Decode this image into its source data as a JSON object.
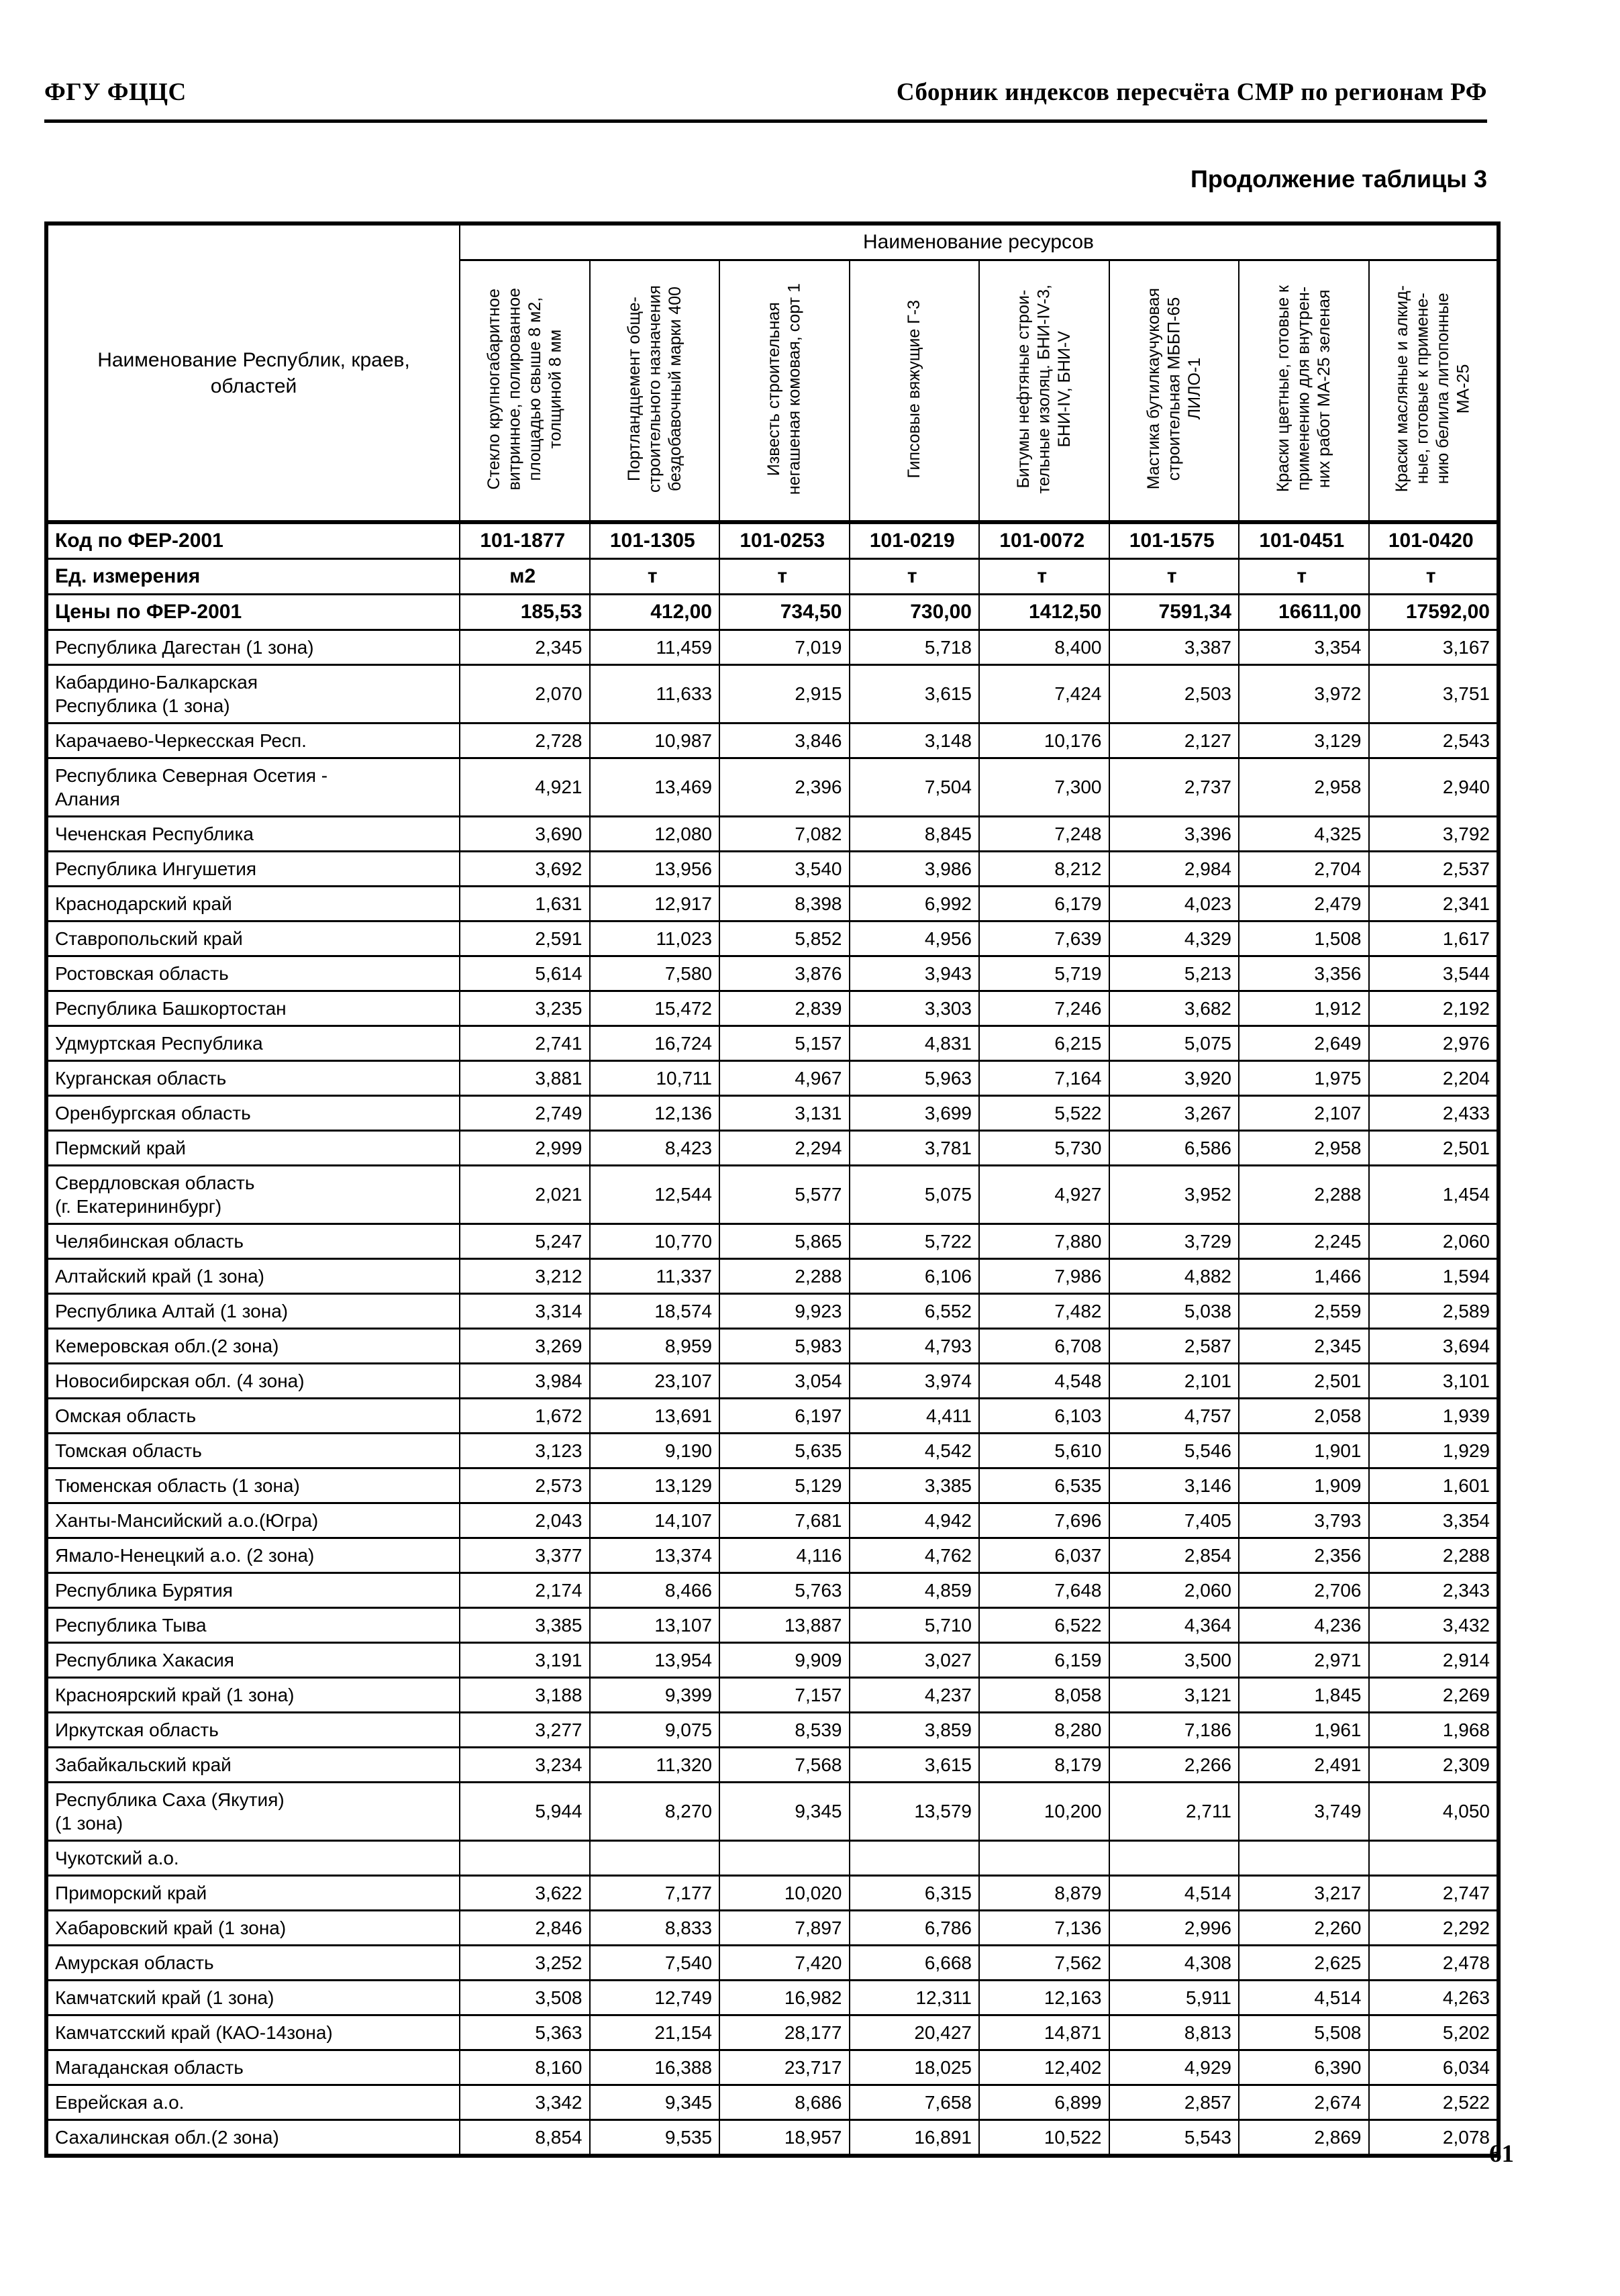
{
  "page": {
    "header_left": "ФГУ ФЦЦС",
    "header_right": "Сборник индексов пересчёта СМР  по регионам РФ",
    "table_caption": "Продолжение таблицы 3",
    "page_number": "61"
  },
  "table": {
    "region_column_header": "Наименование Республик, краев,\nобластей",
    "resources_header": "Наименование ресурсов",
    "resource_columns": [
      "Стекло крупногабаритное\nвитринное, полированное\nплощадью свыше 8 м2,\nтолщиной 8 мм",
      "Портландцемент обще-\nстроительного назначения\nбездобавочный марки 400",
      "Известь строительная\nнегашеная комовая, сорт 1",
      "Гипсовые вяжущие Г-3",
      "Битумы нефтяные строи-\nтельные изоляц. БНИ-IV-3,\nБНИ-IV, БНИ-V",
      "Мастика бутилкаучуковая\nстроительная МББП-65\nЛИЛО-1",
      "Краски цветные, готовые к\nприменению для внутрен-\nних работ МА-25  зеленая",
      "Краски масляные и алкид-\nные, готовые к примене-\nнию белила литопонные\nМА-25"
    ],
    "meta_rows": [
      {
        "label": "Код по ФЕР-2001",
        "values": [
          "101-1877",
          "101-1305",
          "101-0253",
          "101-0219",
          "101-0072",
          "101-1575",
          "101-0451",
          "101-0420"
        ]
      },
      {
        "label": "Ед. измерения",
        "values": [
          "м2",
          "т",
          "т",
          "т",
          "т",
          "т",
          "т",
          "т"
        ]
      },
      {
        "label": "Цены по ФЕР-2001",
        "values": [
          "185,53",
          "412,00",
          "734,50",
          "730,00",
          "1412,50",
          "7591,34",
          "16611,00",
          "17592,00"
        ]
      }
    ],
    "rows": [
      {
        "region": "Республика Дагестан (1 зона)",
        "values": [
          "2,345",
          "11,459",
          "7,019",
          "5,718",
          "8,400",
          "3,387",
          "3,354",
          "3,167"
        ]
      },
      {
        "region": "Кабардино-Балкарская\nРеспублика (1 зона)",
        "values": [
          "2,070",
          "11,633",
          "2,915",
          "3,615",
          "7,424",
          "2,503",
          "3,972",
          "3,751"
        ]
      },
      {
        "region": "Карачаево-Черкесская Респ.",
        "values": [
          "2,728",
          "10,987",
          "3,846",
          "3,148",
          "10,176",
          "2,127",
          "3,129",
          "2,543"
        ]
      },
      {
        "region": "Республика Северная Осетия -\nАлания",
        "values": [
          "4,921",
          "13,469",
          "2,396",
          "7,504",
          "7,300",
          "2,737",
          "2,958",
          "2,940"
        ]
      },
      {
        "region": "Чеченская Республика",
        "values": [
          "3,690",
          "12,080",
          "7,082",
          "8,845",
          "7,248",
          "3,396",
          "4,325",
          "3,792"
        ]
      },
      {
        "region": "Республика Ингушетия",
        "values": [
          "3,692",
          "13,956",
          "3,540",
          "3,986",
          "8,212",
          "2,984",
          "2,704",
          "2,537"
        ]
      },
      {
        "region": "Краснодарский край",
        "values": [
          "1,631",
          "12,917",
          "8,398",
          "6,992",
          "6,179",
          "4,023",
          "2,479",
          "2,341"
        ]
      },
      {
        "region": "Ставропольский край",
        "values": [
          "2,591",
          "11,023",
          "5,852",
          "4,956",
          "7,639",
          "4,329",
          "1,508",
          "1,617"
        ]
      },
      {
        "region": "Ростовская область",
        "values": [
          "5,614",
          "7,580",
          "3,876",
          "3,943",
          "5,719",
          "5,213",
          "3,356",
          "3,544"
        ]
      },
      {
        "region": "Республика Башкортостан",
        "values": [
          "3,235",
          "15,472",
          "2,839",
          "3,303",
          "7,246",
          "3,682",
          "1,912",
          "2,192"
        ]
      },
      {
        "region": "Удмуртская Республика",
        "values": [
          "2,741",
          "16,724",
          "5,157",
          "4,831",
          "6,215",
          "5,075",
          "2,649",
          "2,976"
        ]
      },
      {
        "region": "Курганская область",
        "values": [
          "3,881",
          "10,711",
          "4,967",
          "5,963",
          "7,164",
          "3,920",
          "1,975",
          "2,204"
        ]
      },
      {
        "region": "Оренбургская область",
        "values": [
          "2,749",
          "12,136",
          "3,131",
          "3,699",
          "5,522",
          "3,267",
          "2,107",
          "2,433"
        ]
      },
      {
        "region": "Пермский край",
        "values": [
          "2,999",
          "8,423",
          "2,294",
          "3,781",
          "5,730",
          "6,586",
          "2,958",
          "2,501"
        ]
      },
      {
        "region": "Свердловская область\n(г. Екатерининбург)",
        "values": [
          "2,021",
          "12,544",
          "5,577",
          "5,075",
          "4,927",
          "3,952",
          "2,288",
          "1,454"
        ]
      },
      {
        "region": "Челябинская область",
        "values": [
          "5,247",
          "10,770",
          "5,865",
          "5,722",
          "7,880",
          "3,729",
          "2,245",
          "2,060"
        ]
      },
      {
        "region": "Алтайский край (1 зона)",
        "values": [
          "3,212",
          "11,337",
          "2,288",
          "6,106",
          "7,986",
          "4,882",
          "1,466",
          "1,594"
        ]
      },
      {
        "region": "Республика Алтай (1 зона)",
        "values": [
          "3,314",
          "18,574",
          "9,923",
          "6,552",
          "7,482",
          "5,038",
          "2,559",
          "2,589"
        ]
      },
      {
        "region": "Кемеровская обл.(2 зона)",
        "values": [
          "3,269",
          "8,959",
          "5,983",
          "4,793",
          "6,708",
          "2,587",
          "2,345",
          "3,694"
        ]
      },
      {
        "region": "Новосибирская обл. (4 зона)",
        "values": [
          "3,984",
          "23,107",
          "3,054",
          "3,974",
          "4,548",
          "2,101",
          "2,501",
          "3,101"
        ]
      },
      {
        "region": "Омская область",
        "values": [
          "1,672",
          "13,691",
          "6,197",
          "4,411",
          "6,103",
          "4,757",
          "2,058",
          "1,939"
        ]
      },
      {
        "region": "Томская область",
        "values": [
          "3,123",
          "9,190",
          "5,635",
          "4,542",
          "5,610",
          "5,546",
          "1,901",
          "1,929"
        ]
      },
      {
        "region": "Тюменская область (1 зона)",
        "values": [
          "2,573",
          "13,129",
          "5,129",
          "3,385",
          "6,535",
          "3,146",
          "1,909",
          "1,601"
        ]
      },
      {
        "region": "Ханты-Мансийский а.о.(Югра)",
        "values": [
          "2,043",
          "14,107",
          "7,681",
          "4,942",
          "7,696",
          "7,405",
          "3,793",
          "3,354"
        ]
      },
      {
        "region": "Ямало-Ненецкий а.о. (2 зона)",
        "values": [
          "3,377",
          "13,374",
          "4,116",
          "4,762",
          "6,037",
          "2,854",
          "2,356",
          "2,288"
        ]
      },
      {
        "region": "Республика Бурятия",
        "values": [
          "2,174",
          "8,466",
          "5,763",
          "4,859",
          "7,648",
          "2,060",
          "2,706",
          "2,343"
        ]
      },
      {
        "region": "Республика Тыва",
        "values": [
          "3,385",
          "13,107",
          "13,887",
          "5,710",
          "6,522",
          "4,364",
          "4,236",
          "3,432"
        ]
      },
      {
        "region": "Республика Хакасия",
        "values": [
          "3,191",
          "13,954",
          "9,909",
          "3,027",
          "6,159",
          "3,500",
          "2,971",
          "2,914"
        ]
      },
      {
        "region": "Красноярский край (1 зона)",
        "values": [
          "3,188",
          "9,399",
          "7,157",
          "4,237",
          "8,058",
          "3,121",
          "1,845",
          "2,269"
        ]
      },
      {
        "region": "Иркутская область",
        "values": [
          "3,277",
          "9,075",
          "8,539",
          "3,859",
          "8,280",
          "7,186",
          "1,961",
          "1,968"
        ]
      },
      {
        "region": "Забайкальский край",
        "values": [
          "3,234",
          "11,320",
          "7,568",
          "3,615",
          "8,179",
          "2,266",
          "2,491",
          "2,309"
        ]
      },
      {
        "region": "Республика Саха (Якутия)\n(1 зона)",
        "values": [
          "5,944",
          "8,270",
          "9,345",
          "13,579",
          "10,200",
          "2,711",
          "3,749",
          "4,050"
        ]
      },
      {
        "region": "Чукотский а.о.",
        "values": [
          "",
          "",
          "",
          "",
          "",
          "",
          "",
          ""
        ]
      },
      {
        "region": "Приморский край",
        "values": [
          "3,622",
          "7,177",
          "10,020",
          "6,315",
          "8,879",
          "4,514",
          "3,217",
          "2,747"
        ]
      },
      {
        "region": "Хабаровский край (1 зона)",
        "values": [
          "2,846",
          "8,833",
          "7,897",
          "6,786",
          "7,136",
          "2,996",
          "2,260",
          "2,292"
        ]
      },
      {
        "region": "Амурская область",
        "values": [
          "3,252",
          "7,540",
          "7,420",
          "6,668",
          "7,562",
          "4,308",
          "2,625",
          "2,478"
        ]
      },
      {
        "region": "Камчатский край (1 зона)",
        "values": [
          "3,508",
          "12,749",
          "16,982",
          "12,311",
          "12,163",
          "5,911",
          "4,514",
          "4,263"
        ]
      },
      {
        "region": "Камчатсский край (КАО-14зона)",
        "values": [
          "5,363",
          "21,154",
          "28,177",
          "20,427",
          "14,871",
          "8,813",
          "5,508",
          "5,202"
        ]
      },
      {
        "region": "Магаданская область",
        "values": [
          "8,160",
          "16,388",
          "23,717",
          "18,025",
          "12,402",
          "4,929",
          "6,390",
          "6,034"
        ]
      },
      {
        "region": "Еврейская а.о.",
        "values": [
          "3,342",
          "9,345",
          "8,686",
          "7,658",
          "6,899",
          "2,857",
          "2,674",
          "2,522"
        ]
      },
      {
        "region": "Сахалинская обл.(2 зона)",
        "values": [
          "8,854",
          "9,535",
          "18,957",
          "16,891",
          "10,522",
          "5,543",
          "2,869",
          "2,078"
        ]
      }
    ]
  }
}
